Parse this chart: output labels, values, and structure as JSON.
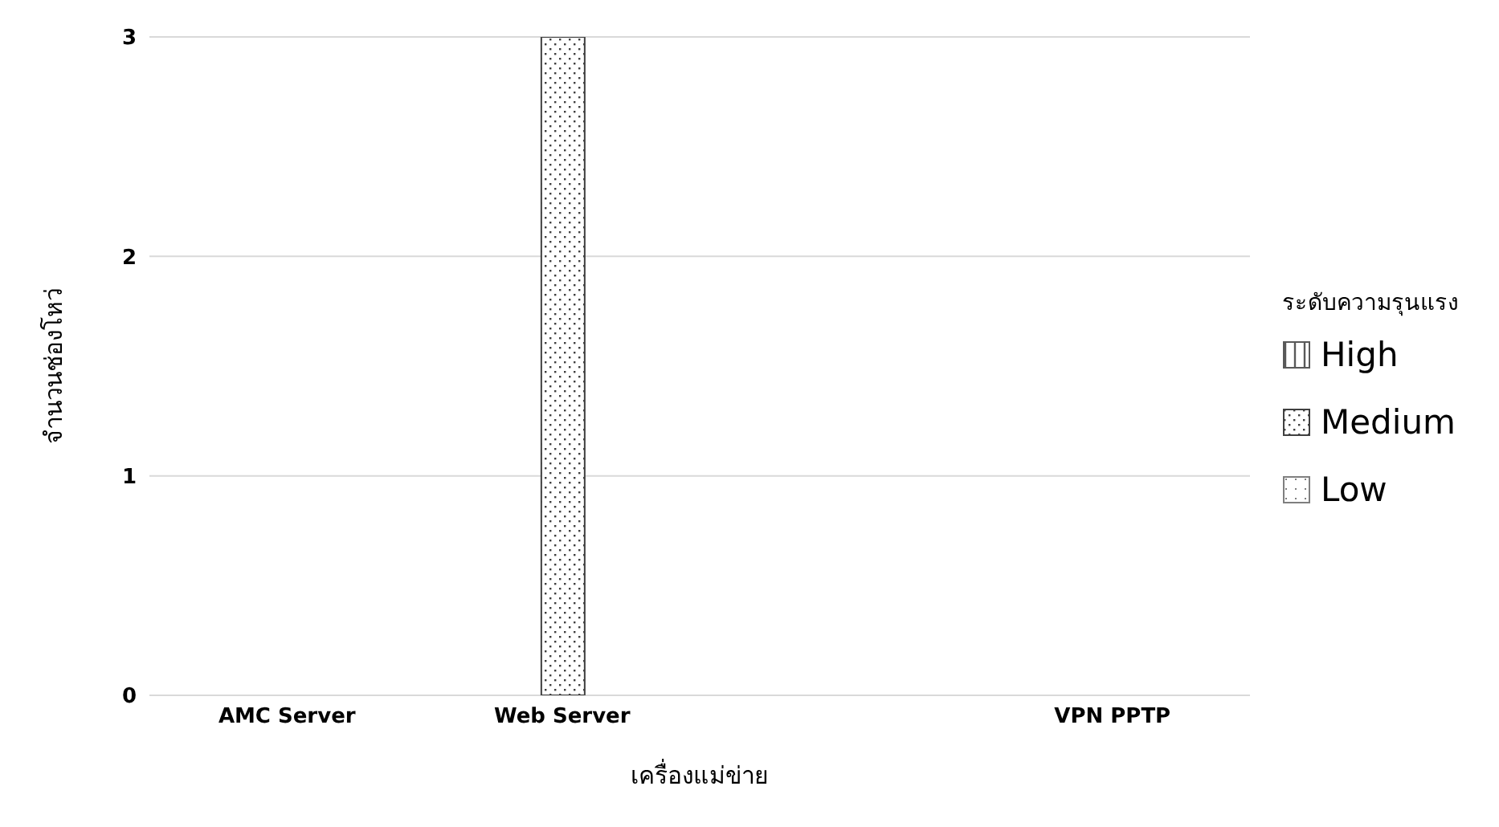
{
  "chart_data": {
    "type": "bar",
    "xlabel": "เครื่องแม่ข่าย",
    "ylabel": "จำนวนช่องโหว่",
    "legend_title": "ระดับความรุนแรง",
    "categories": [
      "AMC Server",
      "Web Server",
      null,
      "VPN PPTP"
    ],
    "series": [
      {
        "name": "High",
        "color": "#595959",
        "values": [
          0,
          0,
          0,
          0
        ]
      },
      {
        "name": "Medium",
        "color": "#404040",
        "values": [
          0,
          3,
          0,
          0
        ]
      },
      {
        "name": "Low",
        "color": "#7f7f7f",
        "values": [
          0,
          0,
          0,
          0
        ]
      }
    ],
    "ylim": [
      0,
      3
    ],
    "yticks": [
      0,
      1,
      2,
      3
    ],
    "grid": "y",
    "legend": "right"
  }
}
